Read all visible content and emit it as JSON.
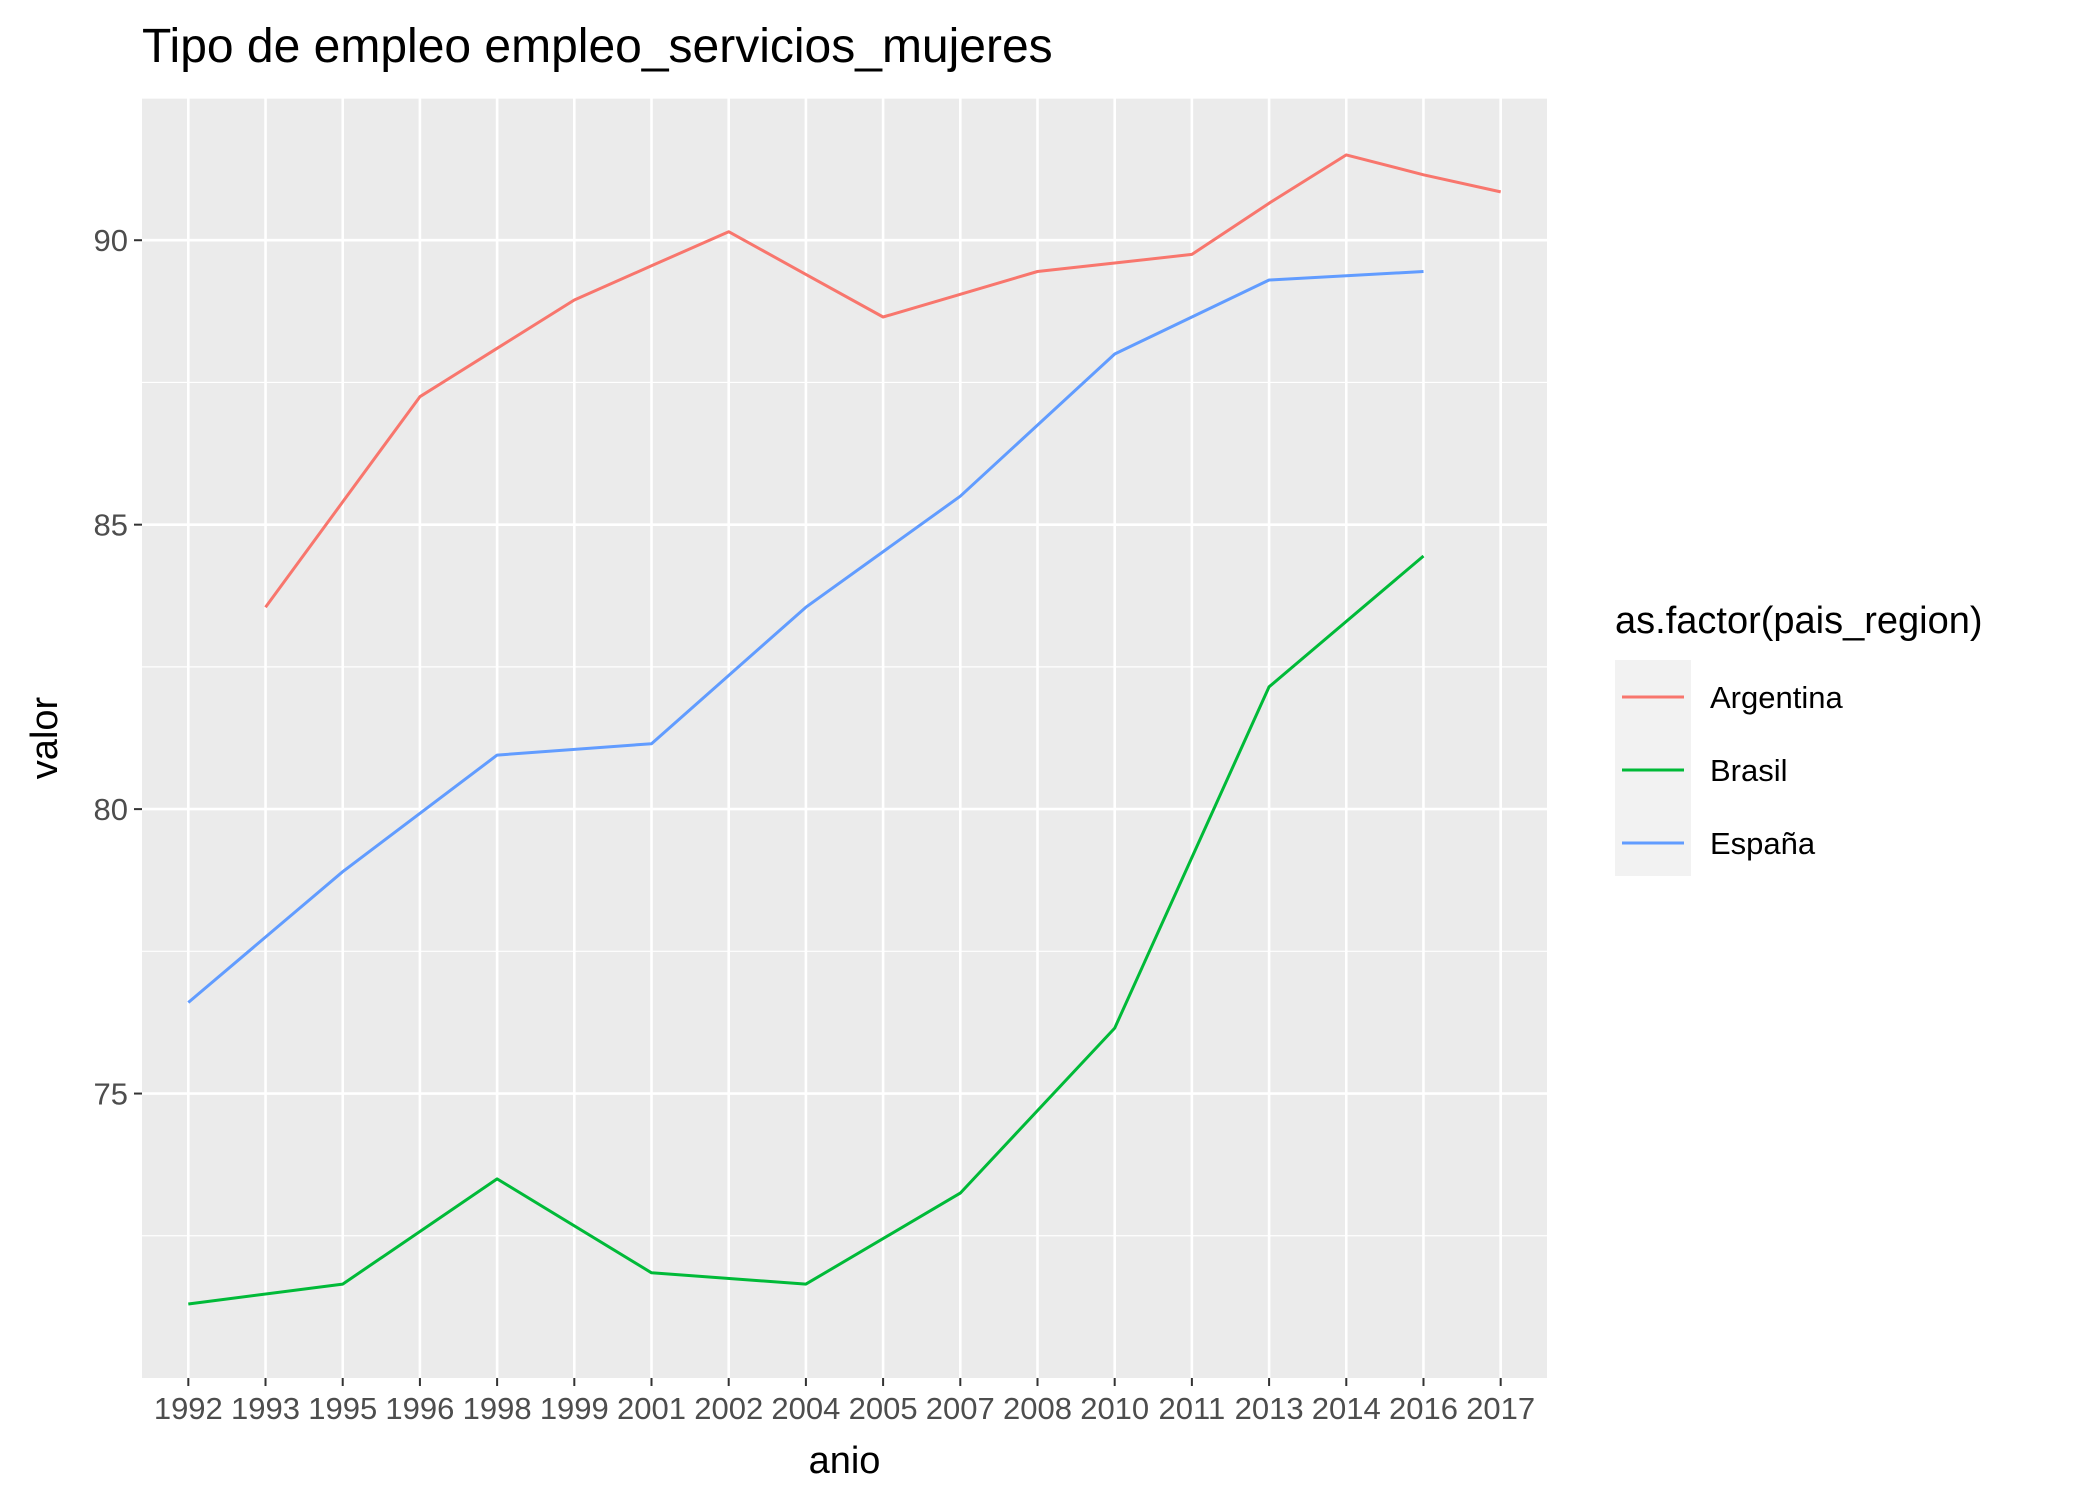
{
  "chart_data": {
    "type": "line",
    "title": "Tipo de empleo empleo_servicios_mujeres",
    "xlabel": "anio",
    "ylabel": "valor",
    "x": [
      "1992",
      "1993",
      "1995",
      "1996",
      "1998",
      "1999",
      "2001",
      "2002",
      "2004",
      "2005",
      "2007",
      "2008",
      "2010",
      "2011",
      "2013",
      "2014",
      "2016",
      "2017"
    ],
    "y_ticks": [
      75,
      80,
      85,
      90
    ],
    "ylim": [
      70.0,
      92.5
    ],
    "grid": true,
    "legend_title": "as.factor(pais_region)",
    "legend_position": "right",
    "series": [
      {
        "name": "Argentina",
        "color": "#F8766D",
        "values": [
          null,
          83.55,
          85.4,
          87.25,
          88.1,
          88.95,
          89.55,
          90.15,
          89.4,
          88.65,
          89.05,
          89.45,
          89.6,
          89.75,
          90.65,
          91.5,
          91.15,
          90.85
        ]
      },
      {
        "name": "Brasil",
        "color": "#00BA38",
        "values": [
          71.3,
          null,
          71.65,
          null,
          73.5,
          null,
          71.85,
          null,
          71.65,
          null,
          73.25,
          null,
          76.15,
          null,
          82.15,
          null,
          84.45,
          null
        ]
      },
      {
        "name": "España",
        "color": "#619CFF",
        "values": [
          76.6,
          null,
          78.9,
          null,
          80.95,
          null,
          81.15,
          null,
          83.55,
          null,
          85.5,
          null,
          88.0,
          null,
          89.3,
          null,
          89.45,
          null
        ]
      }
    ]
  }
}
